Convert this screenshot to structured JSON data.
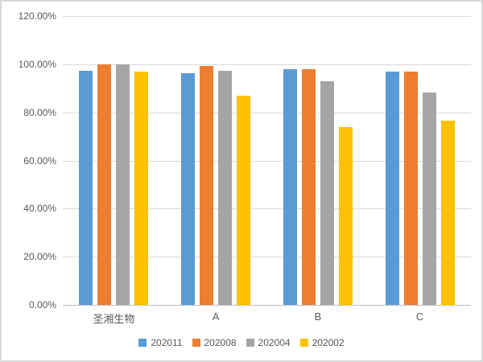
{
  "chart_data": {
    "type": "bar",
    "title": "",
    "xlabel": "",
    "ylabel": "",
    "categories": [
      "圣湘生物",
      "A",
      "B",
      "C"
    ],
    "series": [
      {
        "name": "202011",
        "color": "#5B9BD5",
        "values": [
          97.2,
          96.3,
          98.0,
          97.0
        ]
      },
      {
        "name": "202008",
        "color": "#ED7D31",
        "values": [
          100.0,
          99.2,
          98.0,
          97.0
        ]
      },
      {
        "name": "202004",
        "color": "#A5A5A5",
        "values": [
          100.0,
          97.3,
          93.0,
          88.3
        ]
      },
      {
        "name": "202002",
        "color": "#FFC000",
        "values": [
          96.8,
          86.8,
          74.0,
          76.7
        ]
      }
    ],
    "y_axis": {
      "min": 0,
      "max": 120,
      "step": 20,
      "tick_labels": [
        "0.00%",
        "20.00%",
        "40.00%",
        "60.00%",
        "80.00%",
        "100.00%",
        "120.00%"
      ]
    },
    "grid": true,
    "legend_position": "bottom",
    "styles": {
      "gridline_color": "#d9d9d9",
      "axis_line_color": "#bfbfbf",
      "text_color": "#595959",
      "background": "#ffffff",
      "frame_border_color": "#d9d9d9"
    }
  }
}
